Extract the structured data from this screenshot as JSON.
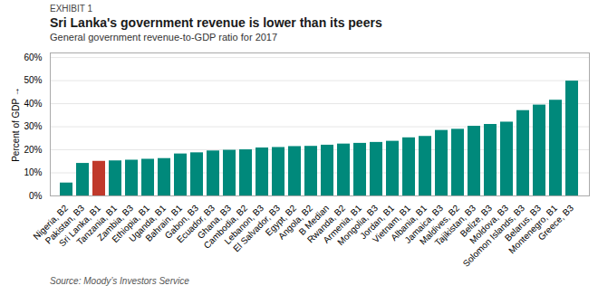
{
  "chart_data": {
    "type": "bar",
    "title_label": "EXHIBIT 1",
    "title": "Sri Lanka's government revenue is lower than its peers",
    "subtitle": "General government revenue-to-GDP ratio for 2017",
    "ylabel": "Percent of GDP",
    "source": "Source: Moody’s Investors Service",
    "categories": [
      "Nigeria, B2",
      "Pakistan, B3",
      "Sri Lanka, B1",
      "Tanzania, B1",
      "Zambia, B3",
      "Ethiopia, B1",
      "Uganda, B1",
      "Bahrain, B1",
      "Gabon, B3",
      "Ecuador, B3",
      "Ghana, B3",
      "Cambodia, B2",
      "Lebanon, B3",
      "El Salvador, B3",
      "Egypt, B2",
      "Angola, B2",
      "B Median",
      "Rwanda, B2",
      "Armenia, B1",
      "Mongolia, B3",
      "Jordan, B1",
      "Vietnam, B1",
      "Albania, B1",
      "Jamaica, B3",
      "Maldives, B2",
      "Tajikistan, B3",
      "Belize, B3",
      "Moldova, B3",
      "Solomon Islands, B3",
      "Belarus, B3",
      "Montenegro, B1",
      "Greece, B3"
    ],
    "values": [
      0.056,
      0.141,
      0.15,
      0.152,
      0.155,
      0.159,
      0.162,
      0.182,
      0.187,
      0.195,
      0.198,
      0.2,
      0.208,
      0.21,
      0.214,
      0.215,
      0.22,
      0.225,
      0.228,
      0.232,
      0.237,
      0.252,
      0.258,
      0.284,
      0.289,
      0.302,
      0.31,
      0.32,
      0.37,
      0.394,
      0.415,
      0.498
    ],
    "colors": [
      "#00897B",
      "#00897B",
      "#C0392B",
      "#00897B",
      "#00897B",
      "#00897B",
      "#00897B",
      "#00897B",
      "#00897B",
      "#00897B",
      "#00897B",
      "#00897B",
      "#00897B",
      "#00897B",
      "#00897B",
      "#00897B",
      "#00897B",
      "#00897B",
      "#00897B",
      "#00897B",
      "#00897B",
      "#00897B",
      "#00897B",
      "#00897B",
      "#00897B",
      "#00897B",
      "#00897B",
      "#00897B",
      "#00897B",
      "#00897B",
      "#00897B",
      "#00897B"
    ],
    "ylim": [
      0,
      0.62
    ],
    "yticks": [
      {
        "value": 0.0,
        "label": "0%"
      },
      {
        "value": 0.1,
        "label": "10%"
      },
      {
        "value": 0.2,
        "label": "20%"
      },
      {
        "value": 0.3,
        "label": "30%"
      },
      {
        "value": 0.4,
        "label": "40%"
      },
      {
        "value": 0.5,
        "label": "50%"
      },
      {
        "value": 0.6,
        "label": "60%"
      }
    ],
    "grid": true
  }
}
